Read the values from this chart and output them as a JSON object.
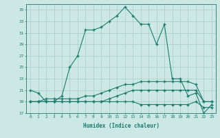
{
  "xlabel": "Humidex (Indice chaleur)",
  "x": [
    0,
    1,
    2,
    3,
    4,
    5,
    6,
    7,
    8,
    9,
    10,
    11,
    12,
    13,
    14,
    15,
    16,
    17,
    18,
    19,
    20,
    21,
    22,
    23
  ],
  "line1": [
    21,
    20.5,
    19,
    19,
    20,
    25,
    27,
    31.5,
    31.5,
    32,
    33,
    34,
    35.5,
    34,
    32.5,
    32.5,
    29,
    32.5,
    23,
    23,
    20,
    20.5,
    17,
    18.5
  ],
  "line2": [
    19,
    19,
    19,
    19,
    19,
    19,
    19,
    19,
    19,
    19,
    19.5,
    20,
    20.5,
    21,
    21,
    21,
    21,
    21,
    21,
    21,
    21,
    21,
    19,
    19
  ],
  "line3": [
    19,
    19,
    19.5,
    19.5,
    19.5,
    19.5,
    19.5,
    20,
    20,
    20.5,
    21,
    21.5,
    22,
    22,
    22.5,
    22.5,
    22.5,
    22.5,
    22.5,
    22.5,
    22.5,
    22,
    19,
    19
  ],
  "line4": [
    19,
    19,
    19,
    19,
    19,
    19,
    19,
    19,
    19,
    19,
    19,
    19,
    19,
    19,
    18.5,
    18.5,
    18.5,
    18.5,
    18.5,
    18.5,
    18.5,
    19,
    18,
    18
  ],
  "line_color": "#1a7a6e",
  "bg_color": "#cce8e4",
  "grid_color": "#a8ccc8",
  "ylim": [
    17,
    36
  ],
  "xlim": [
    -0.5,
    23.5
  ],
  "yticks": [
    17,
    19,
    21,
    23,
    25,
    27,
    29,
    31,
    33,
    35
  ],
  "xticks": [
    0,
    1,
    2,
    3,
    4,
    5,
    6,
    7,
    8,
    9,
    10,
    11,
    12,
    13,
    14,
    15,
    16,
    17,
    18,
    19,
    20,
    21,
    22,
    23
  ]
}
